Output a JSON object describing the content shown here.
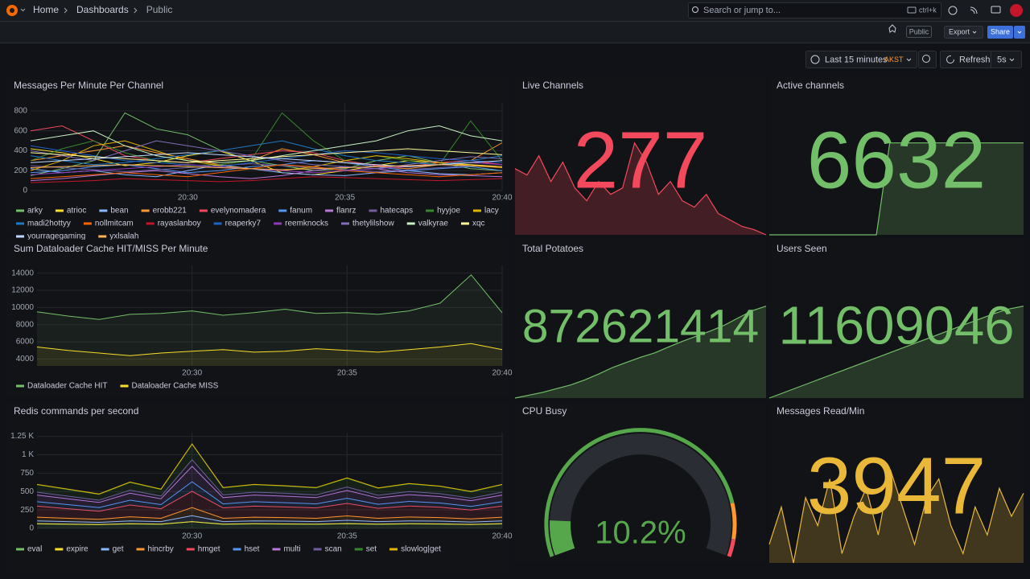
{
  "header": {
    "breadcrumbs": [
      "Home",
      "Dashboards",
      "Public"
    ],
    "search_placeholder": "Search or jump to...",
    "search_shortcut": "ctrl+k"
  },
  "toolbar": {
    "public_badge": "Public",
    "export": "Export",
    "share": "Share",
    "time_range": "Last 15 minutes",
    "timezone": "AKST",
    "refresh": "Refresh",
    "refresh_interval": "5s"
  },
  "chart_data": [
    {
      "type": "line",
      "title": "Messages Per Minute Per Channel",
      "x": [
        "20:25",
        "20:26",
        "20:27",
        "20:28",
        "20:29",
        "20:30",
        "20:31",
        "20:32",
        "20:33",
        "20:34",
        "20:35",
        "20:36",
        "20:37",
        "20:38",
        "20:39",
        "20:40"
      ],
      "xlim": [
        "20:25",
        "20:40"
      ],
      "xticks": [
        "20:30",
        "20:35",
        "20:40"
      ],
      "ylim": [
        0,
        880
      ],
      "yticks": [
        0,
        200,
        400,
        600,
        800
      ],
      "grid": true,
      "series": [
        {
          "name": "arky",
          "color": "#73bf69",
          "values": [
            150,
            220,
            300,
            780,
            620,
            560,
            410,
            300,
            250,
            200,
            220,
            300,
            350,
            280,
            220,
            200
          ]
        },
        {
          "name": "atrioc",
          "color": "#fade2a",
          "values": [
            420,
            380,
            320,
            250,
            280,
            350,
            400,
            300,
            180,
            160,
            200,
            250,
            300,
            280,
            260,
            240
          ]
        },
        {
          "name": "bean",
          "color": "#8ab8ff",
          "values": [
            220,
            180,
            200,
            160,
            140,
            200,
            260,
            220,
            180,
            160,
            150,
            180,
            200,
            170,
            160,
            180
          ]
        },
        {
          "name": "erobb221",
          "color": "#ff9830",
          "values": [
            300,
            350,
            400,
            450,
            380,
            320,
            260,
            300,
            420,
            360,
            280,
            240,
            220,
            260,
            300,
            480
          ]
        },
        {
          "name": "evelynomadera",
          "color": "#f2495c",
          "values": [
            600,
            650,
            500,
            350,
            300,
            280,
            320,
            360,
            400,
            380,
            300,
            250,
            240,
            280,
            300,
            260
          ]
        },
        {
          "name": "fanum",
          "color": "#5794f2",
          "values": [
            180,
            200,
            240,
            260,
            220,
            180,
            200,
            240,
            260,
            300,
            280,
            240,
            200,
            220,
            240,
            200
          ]
        },
        {
          "name": "flanrz",
          "color": "#b877d9",
          "values": [
            100,
            120,
            150,
            180,
            200,
            170,
            140,
            120,
            150,
            200,
            240,
            220,
            180,
            160,
            150,
            140
          ]
        },
        {
          "name": "hatecaps",
          "color": "#705da0",
          "values": [
            250,
            230,
            210,
            190,
            210,
            230,
            250,
            270,
            250,
            230,
            210,
            190,
            210,
            230,
            250,
            240
          ]
        },
        {
          "name": "hyyjoe",
          "color": "#37872d",
          "values": [
            300,
            420,
            500,
            380,
            300,
            250,
            260,
            300,
            780,
            500,
            300,
            350,
            300,
            260,
            700,
            300
          ]
        },
        {
          "name": "lacy",
          "color": "#e0b400",
          "values": [
            200,
            300,
            450,
            500,
            400,
            300,
            250,
            220,
            200,
            240,
            300,
            350,
            320,
            280,
            250,
            230
          ]
        },
        {
          "name": "madi2hottyy",
          "color": "#1f78c1",
          "values": [
            350,
            300,
            260,
            280,
            320,
            360,
            400,
            450,
            500,
            420,
            350,
            300,
            280,
            260,
            300,
            350
          ]
        },
        {
          "name": "nollmitcam",
          "color": "#fa6400",
          "values": [
            120,
            140,
            160,
            180,
            160,
            140,
            180,
            220,
            260,
            240,
            200,
            180,
            160,
            140,
            160,
            180
          ]
        },
        {
          "name": "rayaslanboy",
          "color": "#c4162a",
          "values": [
            80,
            90,
            100,
            120,
            110,
            100,
            90,
            100,
            120,
            140,
            130,
            120,
            110,
            100,
            110,
            120
          ]
        },
        {
          "name": "reaperky7",
          "color": "#1f60c4",
          "values": [
            450,
            400,
            350,
            300,
            280,
            260,
            240,
            280,
            320,
            360,
            400,
            380,
            350,
            320,
            300,
            280
          ]
        },
        {
          "name": "reemknocks",
          "color": "#8f3bb8",
          "values": [
            160,
            180,
            200,
            220,
            240,
            260,
            240,
            220,
            200,
            180,
            200,
            220,
            240,
            260,
            280,
            260
          ]
        },
        {
          "name": "thetylilshow",
          "color": "#806eb7",
          "values": [
            400,
            350,
            300,
            400,
            500,
            450,
            400,
            350,
            300,
            260,
            240,
            220,
            260,
            300,
            340,
            320
          ]
        },
        {
          "name": "valkyrae",
          "color": "#c8f2c2",
          "values": [
            500,
            550,
            600,
            450,
            350,
            300,
            280,
            300,
            350,
            400,
            450,
            500,
            600,
            650,
            550,
            500
          ]
        },
        {
          "name": "xqc",
          "color": "#fff899",
          "values": [
            380,
            360,
            340,
            320,
            300,
            280,
            300,
            320,
            340,
            360,
            380,
            400,
            420,
            400,
            380,
            360
          ]
        },
        {
          "name": "yourragegaming",
          "color": "#c0d8ff",
          "values": [
            280,
            300,
            320,
            340,
            360,
            380,
            360,
            340,
            320,
            300,
            280,
            260,
            240,
            260,
            280,
            300
          ]
        },
        {
          "name": "yxlsalah",
          "color": "#ffb357",
          "values": [
            230,
            240,
            250,
            260,
            250,
            240,
            230,
            220,
            210,
            220,
            230,
            240,
            250,
            260,
            250,
            240
          ]
        }
      ]
    },
    {
      "type": "stat",
      "title": "Live Channels",
      "value": 277,
      "color": "#f2495c",
      "sparkline": [
        380,
        370,
        400,
        360,
        390,
        350,
        330,
        360,
        340,
        350,
        420,
        390,
        340,
        360,
        330,
        320,
        340,
        310,
        300,
        290,
        285,
        277
      ]
    },
    {
      "type": "stat",
      "title": "Active channels",
      "value": 6632,
      "color": "#73bf69",
      "sparkline": [
        6600,
        6600,
        6600,
        6600,
        6600,
        6600,
        6600,
        6600,
        6600,
        6632,
        6632,
        6632,
        6632,
        6632,
        6632,
        6632,
        6632,
        6632,
        6632,
        6632
      ]
    },
    {
      "type": "line",
      "title": "Sum Dataloader Cache HIT/MISS Per Minute",
      "x": [
        "20:25",
        "20:26",
        "20:27",
        "20:28",
        "20:29",
        "20:30",
        "20:31",
        "20:32",
        "20:33",
        "20:34",
        "20:35",
        "20:36",
        "20:37",
        "20:38",
        "20:39",
        "20:40"
      ],
      "xlim": [
        "20:25",
        "20:40"
      ],
      "xticks": [
        "20:30",
        "20:35",
        "20:40"
      ],
      "ylim": [
        3200,
        14900
      ],
      "yticks": [
        4000,
        6000,
        8000,
        10000,
        12000,
        14000
      ],
      "grid": true,
      "fill": true,
      "series": [
        {
          "name": "Dataloader Cache HIT",
          "color": "#73bf69",
          "values": [
            9500,
            9000,
            8600,
            9200,
            9300,
            9600,
            9100,
            9400,
            9800,
            9300,
            9400,
            9200,
            9600,
            10500,
            13800,
            9400
          ]
        },
        {
          "name": "Dataloader Cache MISS",
          "color": "#fade2a",
          "values": [
            5400,
            5000,
            4700,
            4400,
            4700,
            4900,
            5100,
            4800,
            4900,
            5200,
            5000,
            4800,
            5100,
            5400,
            5800,
            5100
          ]
        }
      ]
    },
    {
      "type": "stat",
      "title": "Total Potatoes",
      "value": 872621414,
      "color": "#73bf69",
      "sparkline": [
        860000000,
        860400000,
        860800000,
        861300000,
        861800000,
        862500000,
        863300000,
        864200000,
        864900000,
        865600000,
        866200000,
        867000000,
        867800000,
        868500000,
        869200000,
        870000000,
        871000000,
        872000000,
        872621414
      ]
    },
    {
      "type": "stat",
      "title": "Users Seen",
      "value": 11609046,
      "color": "#73bf69",
      "sparkline": [
        11560000,
        11563000,
        11566000,
        11569000,
        11572000,
        11575000,
        11578000,
        11581000,
        11584000,
        11587000,
        11590000,
        11593000,
        11596000,
        11599000,
        11602000,
        11605000,
        11607500,
        11609046
      ]
    },
    {
      "type": "line",
      "title": "Redis commands per second",
      "x": [
        "20:25",
        "20:26",
        "20:27",
        "20:28",
        "20:29",
        "20:30",
        "20:31",
        "20:32",
        "20:33",
        "20:34",
        "20:35",
        "20:36",
        "20:37",
        "20:38",
        "20:39",
        "20:40"
      ],
      "xlim": [
        "20:25",
        "20:40"
      ],
      "xticks": [
        "20:30",
        "20:35",
        "20:40"
      ],
      "ylim": [
        0,
        1300
      ],
      "yticks": [
        0,
        250,
        500,
        750,
        {
          "value": 1000,
          "label": "1 K"
        },
        {
          "value": 1250,
          "label": "1.25 K"
        }
      ],
      "grid": true,
      "stacked": true,
      "series": [
        {
          "name": "eval",
          "color": "#73bf69",
          "values": [
            60,
            55,
            50,
            60,
            55,
            90,
            55,
            60,
            58,
            55,
            62,
            55,
            60,
            58,
            52,
            60
          ]
        },
        {
          "name": "expire",
          "color": "#fade2a",
          "values": [
            2,
            2,
            2,
            2,
            2,
            2,
            2,
            2,
            2,
            2,
            2,
            2,
            2,
            2,
            2,
            2
          ]
        },
        {
          "name": "get",
          "color": "#8ab8ff",
          "values": [
            40,
            35,
            30,
            40,
            35,
            80,
            35,
            40,
            38,
            35,
            45,
            35,
            40,
            38,
            32,
            40
          ]
        },
        {
          "name": "hincrby",
          "color": "#ff9830",
          "values": [
            50,
            45,
            40,
            55,
            45,
            110,
            45,
            50,
            48,
            45,
            60,
            45,
            52,
            48,
            42,
            50
          ]
        },
        {
          "name": "hmget",
          "color": "#f2495c",
          "values": [
            150,
            130,
            110,
            160,
            130,
            220,
            140,
            150,
            145,
            140,
            170,
            135,
            150,
            140,
            120,
            150
          ]
        },
        {
          "name": "hset",
          "color": "#5794f2",
          "values": [
            60,
            55,
            50,
            65,
            55,
            130,
            55,
            60,
            58,
            55,
            70,
            55,
            62,
            58,
            50,
            60
          ]
        },
        {
          "name": "multi",
          "color": "#b877d9",
          "values": [
            90,
            80,
            70,
            95,
            80,
            210,
            85,
            90,
            88,
            85,
            105,
            85,
            92,
            88,
            78,
            90
          ]
        },
        {
          "name": "scan",
          "color": "#705da0",
          "values": [
            40,
            35,
            30,
            42,
            36,
            90,
            38,
            40,
            39,
            37,
            46,
            37,
            41,
            39,
            34,
            40
          ]
        },
        {
          "name": "set",
          "color": "#37872d",
          "values": [
            100,
            90,
            80,
            105,
            90,
            210,
            95,
            100,
            98,
            95,
            120,
            95,
            105,
            98,
            86,
            100
          ]
        },
        {
          "name": "slowlog|get",
          "color": "#e0b400",
          "values": [
            5,
            5,
            5,
            5,
            5,
            5,
            5,
            5,
            5,
            5,
            5,
            5,
            5,
            5,
            5,
            5
          ]
        }
      ]
    },
    {
      "type": "gauge",
      "title": "CPU Busy",
      "value": 10.2,
      "value_label": "10.2%",
      "min": 0,
      "max": 100,
      "thresholds": [
        {
          "value": 0,
          "color": "#56a64b"
        },
        {
          "value": 85,
          "color": "#ff9830"
        },
        {
          "value": 95,
          "color": "#f2495c"
        }
      ]
    },
    {
      "type": "stat",
      "title": "Messages Read/Min",
      "value": 3947,
      "color": "#eab839",
      "sparkline": [
        3400,
        3800,
        3200,
        3900,
        3600,
        4100,
        3300,
        3700,
        4000,
        3500,
        4200,
        3800,
        3400,
        3900,
        4100,
        3600,
        3300,
        3800,
        3500,
        4000,
        3700,
        3947
      ]
    }
  ]
}
